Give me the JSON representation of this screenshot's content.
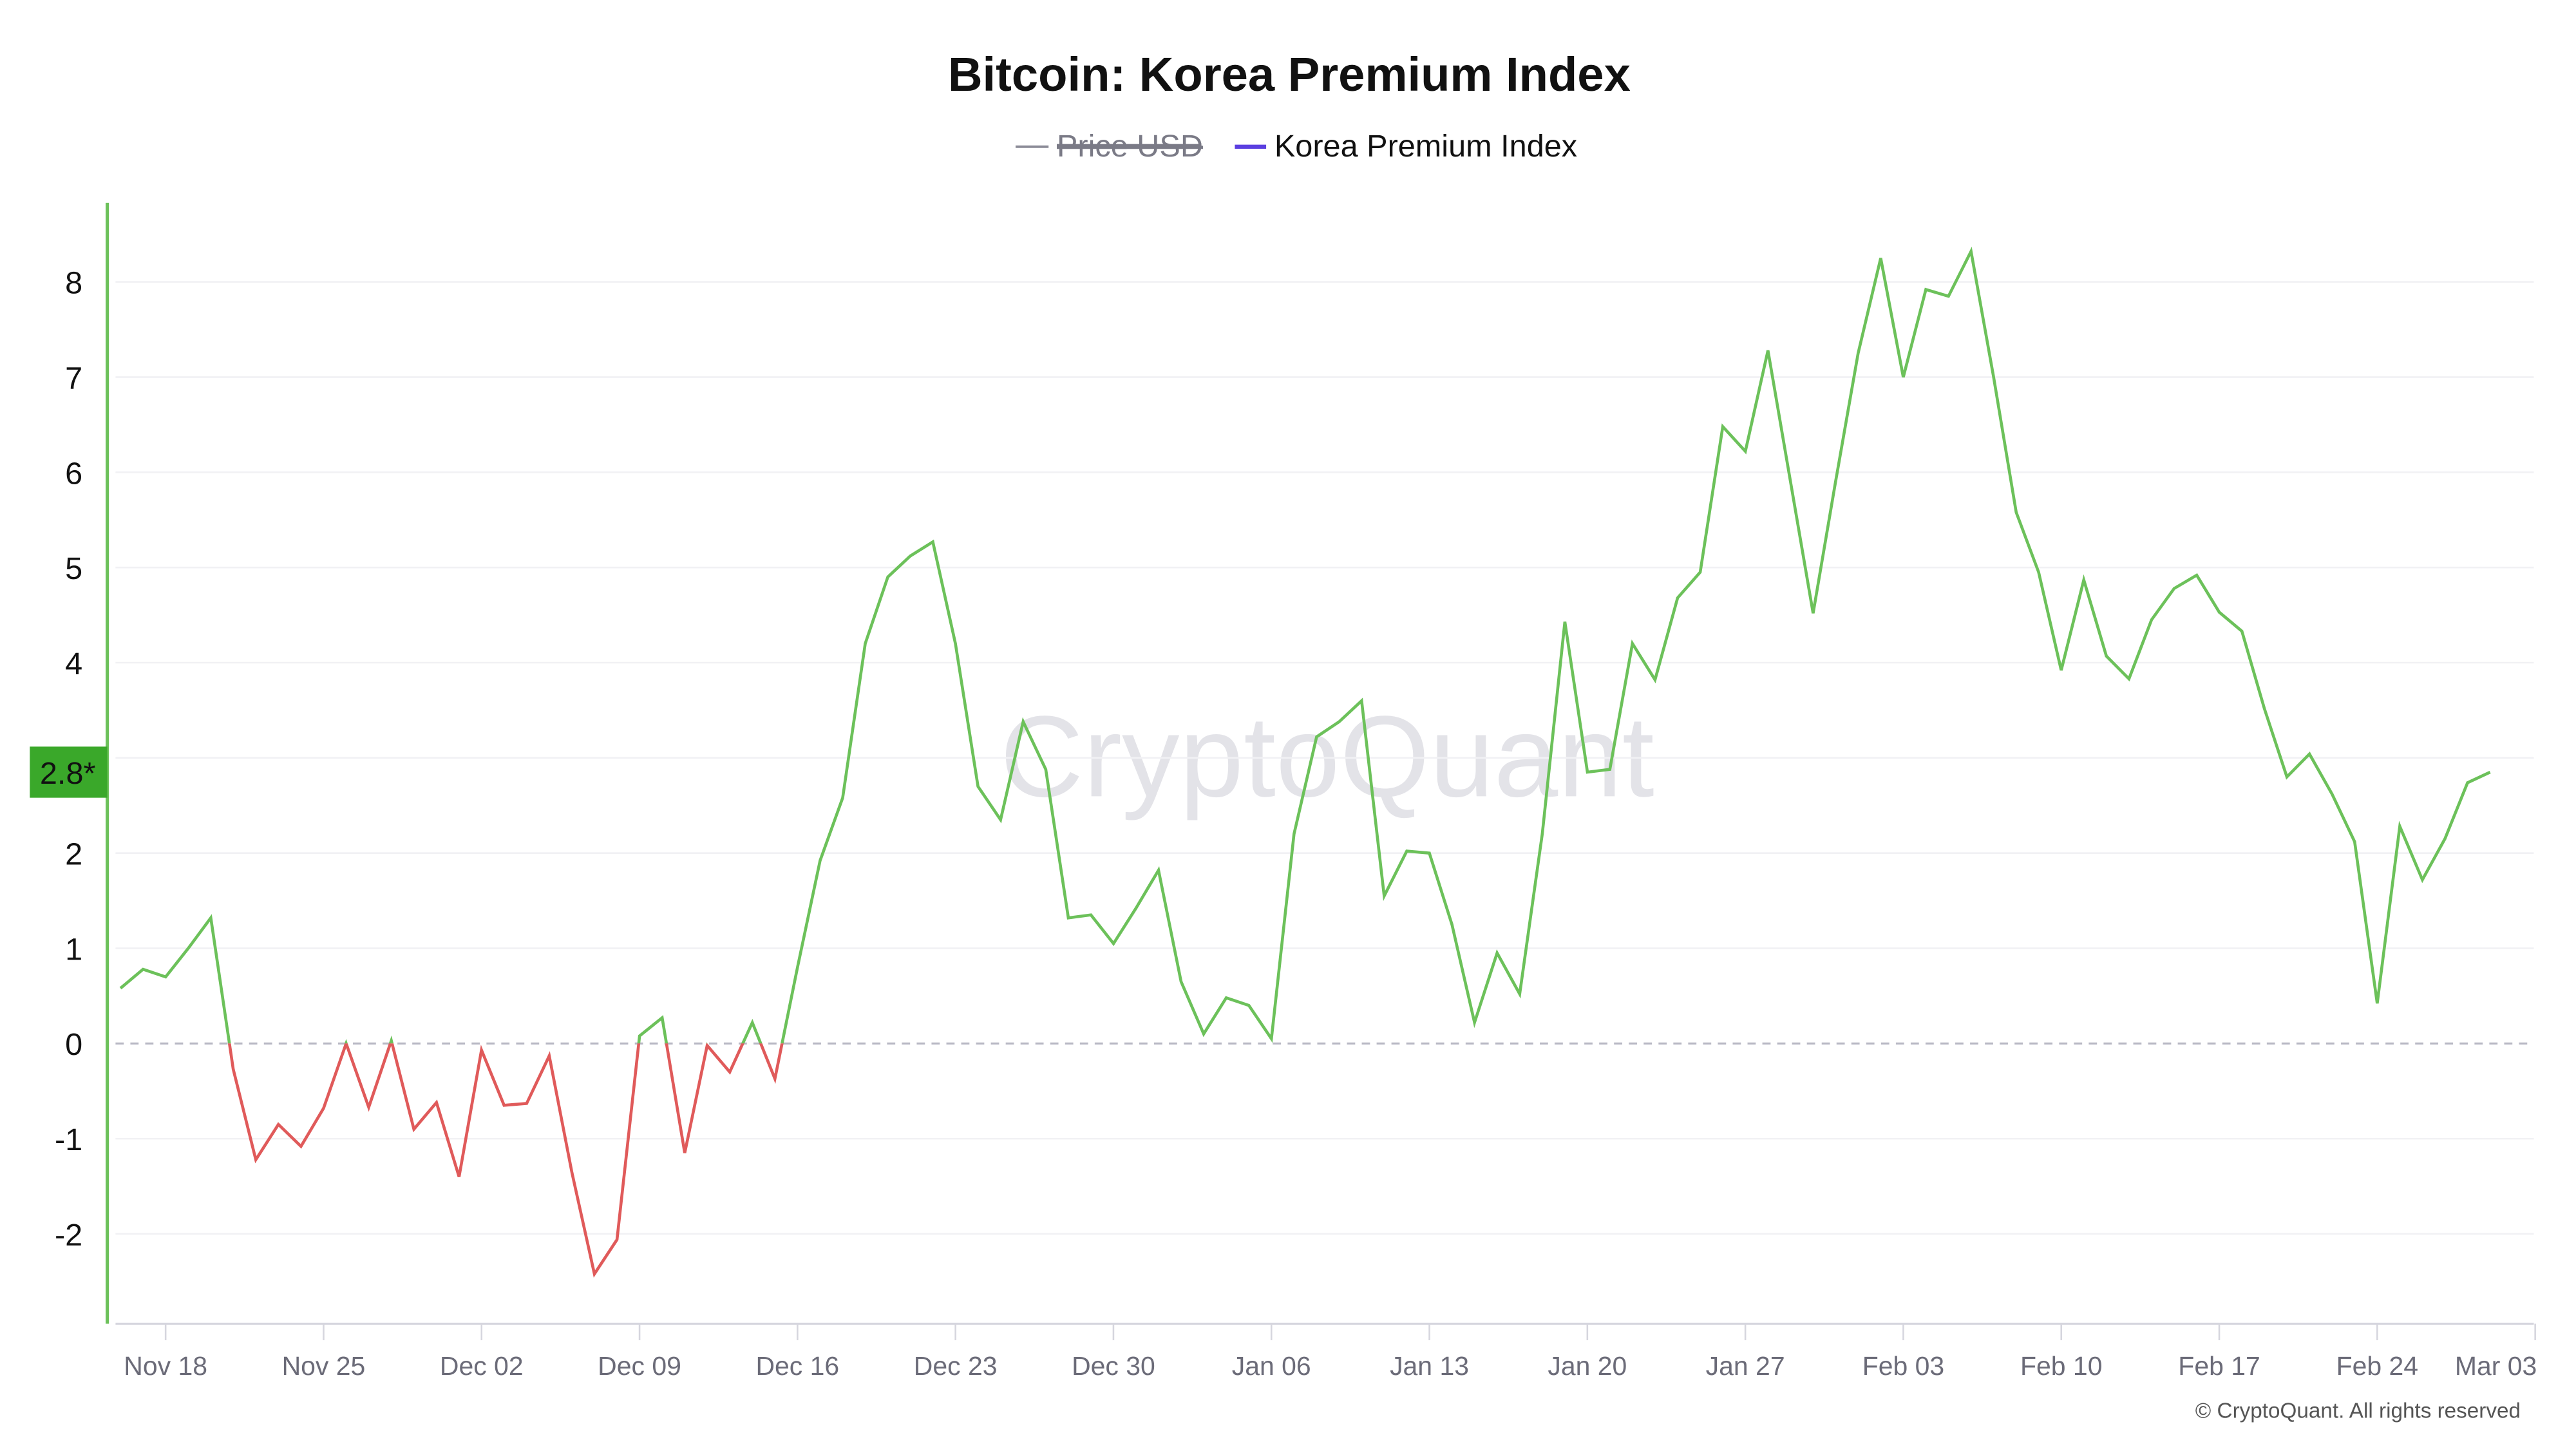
{
  "chart_data": {
    "type": "line",
    "title": "Bitcoin: Korea Premium Index",
    "legend": [
      {
        "name": "Price USD",
        "color": "#8a8a96",
        "hidden": true
      },
      {
        "name": "Korea Premium Index",
        "color": "#5b3fe0",
        "hidden": false
      }
    ],
    "legend_placement": "top-center",
    "x_start": "2024-11-16",
    "x_end": "2025-03-01",
    "x_interval": "daily",
    "x_ticks": [
      "Nov 18",
      "Nov 25",
      "Dec 02",
      "Dec 09",
      "Dec 16",
      "Dec 23",
      "Dec 30",
      "Jan 06",
      "Jan 13",
      "Jan 20",
      "Jan 27",
      "Feb 03",
      "Feb 10",
      "Feb 17",
      "Feb 24",
      "Mar 03"
    ],
    "y_ticks": [
      "-2",
      "-1",
      "0",
      "1",
      "2",
      "4",
      "5",
      "6",
      "7",
      "8"
    ],
    "ylim": [
      -2.95,
      8.8
    ],
    "grid": true,
    "zero_line": "dashed",
    "current_value_label": "2.8*",
    "colors": {
      "positive": "#6cc15a",
      "negative": "#e05a5a",
      "badge": "#3aa82a"
    },
    "series": [
      {
        "name": "Korea Premium Index",
        "values": [
          0.58,
          0.78,
          0.7,
          1.0,
          1.32,
          -0.27,
          -1.22,
          -0.85,
          -1.08,
          -0.68,
          0.0,
          -0.67,
          0.03,
          -0.9,
          -0.62,
          -1.4,
          -0.07,
          -0.65,
          -0.63,
          -0.13,
          -1.35,
          -2.42,
          -2.06,
          0.08,
          0.27,
          -1.15,
          -0.02,
          -0.3,
          0.22,
          -0.37,
          0.8,
          1.92,
          2.58,
          4.2,
          4.9,
          5.12,
          5.27,
          4.2,
          2.7,
          2.35,
          3.38,
          2.88,
          1.32,
          1.35,
          1.05,
          1.42,
          1.82,
          0.65,
          0.1,
          0.48,
          0.4,
          0.05,
          2.2,
          3.22,
          3.38,
          3.6,
          1.55,
          2.02,
          2.0,
          1.25,
          0.22,
          0.95,
          0.52,
          2.2,
          4.43,
          2.85,
          2.88,
          4.2,
          3.82,
          4.68,
          4.95,
          6.48,
          6.22,
          7.28,
          5.9,
          4.52,
          5.9,
          7.25,
          8.25,
          7.0,
          7.92,
          7.85,
          8.32,
          7.0,
          5.58,
          4.95,
          3.92,
          4.87,
          4.07,
          3.83,
          4.45,
          4.78,
          4.92,
          4.53,
          4.33,
          3.52,
          2.8,
          3.04,
          2.62,
          2.12,
          0.42,
          2.28,
          1.72,
          2.15,
          2.74,
          2.85
        ]
      }
    ]
  },
  "watermark": "CryptoQuant",
  "copyright": "© CryptoQuant. All rights reserved"
}
